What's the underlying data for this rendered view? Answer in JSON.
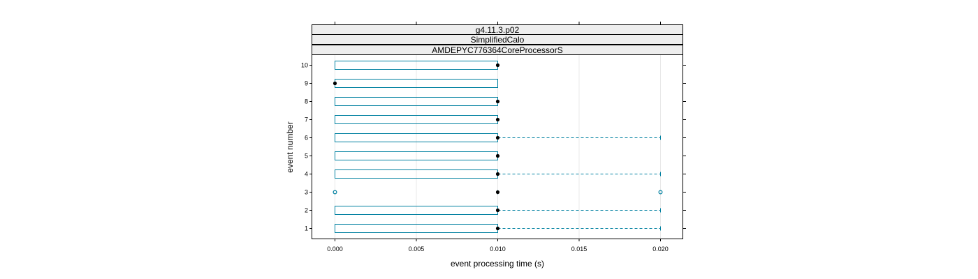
{
  "chart_data": {
    "type": "box",
    "strips": [
      "g4.11.3.p02",
      "SimplifiedCalo",
      "AMDEPYC776364CoreProcessorS"
    ],
    "xlabel": "event processing time (s)",
    "ylabel": "event number",
    "xlim": [
      -0.0014,
      0.0214
    ],
    "x_ticks": [
      "0.000",
      "0.005",
      "0.010",
      "0.015",
      "0.020"
    ],
    "x_tick_values": [
      0.0,
      0.005,
      0.01,
      0.015,
      0.02
    ],
    "categories": [
      "1",
      "2",
      "3",
      "4",
      "5",
      "6",
      "7",
      "8",
      "9",
      "10"
    ],
    "grid": true,
    "boxes": [
      {
        "event": "1",
        "min": 0.0,
        "q1": 0.0,
        "median": 0.01,
        "q3": 0.01,
        "max": 0.02,
        "outliers": []
      },
      {
        "event": "2",
        "min": 0.0,
        "q1": 0.0,
        "median": 0.01,
        "q3": 0.01,
        "max": 0.02,
        "outliers": []
      },
      {
        "event": "3",
        "min": 0.01,
        "q1": 0.01,
        "median": 0.01,
        "q3": 0.01,
        "max": 0.01,
        "outliers": [
          0.0,
          0.02
        ]
      },
      {
        "event": "4",
        "min": 0.0,
        "q1": 0.0,
        "median": 0.01,
        "q3": 0.01,
        "max": 0.02,
        "outliers": []
      },
      {
        "event": "5",
        "min": 0.0,
        "q1": 0.0,
        "median": 0.01,
        "q3": 0.01,
        "max": 0.01,
        "outliers": []
      },
      {
        "event": "6",
        "min": 0.0,
        "q1": 0.0,
        "median": 0.01,
        "q3": 0.01,
        "max": 0.02,
        "outliers": []
      },
      {
        "event": "7",
        "min": 0.0,
        "q1": 0.0,
        "median": 0.01,
        "q3": 0.01,
        "max": 0.01,
        "outliers": []
      },
      {
        "event": "8",
        "min": 0.0,
        "q1": 0.0,
        "median": 0.01,
        "q3": 0.01,
        "max": 0.01,
        "outliers": []
      },
      {
        "event": "9",
        "min": 0.0,
        "q1": 0.0,
        "median": 0.0,
        "q3": 0.01,
        "max": 0.01,
        "outliers": []
      },
      {
        "event": "10",
        "min": 0.0,
        "q1": 0.0,
        "median": 0.01,
        "q3": 0.01,
        "max": 0.01,
        "outliers": []
      }
    ],
    "colors": {
      "box": "#0080a0",
      "median": "#000000",
      "strip": "#eeeeee"
    }
  }
}
